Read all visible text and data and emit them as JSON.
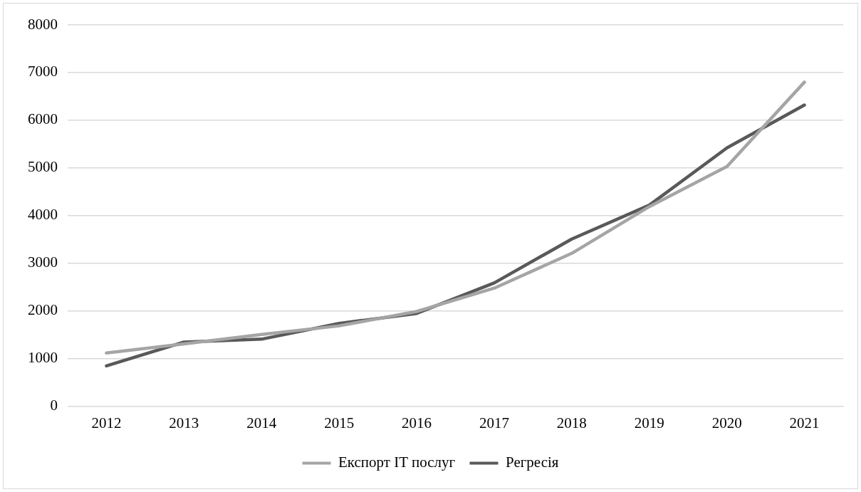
{
  "chart_data": {
    "type": "line",
    "categories": [
      "2012",
      "2013",
      "2014",
      "2015",
      "2016",
      "2017",
      "2018",
      "2019",
      "2020",
      "2021"
    ],
    "series": [
      {
        "name": "Експорт IT послуг",
        "color": "#a5a5a5",
        "values": [
          1120,
          1310,
          1510,
          1690,
          1990,
          2480,
          3210,
          4190,
          5030,
          6800
        ]
      },
      {
        "name": "Регресія",
        "color": "#595959",
        "values": [
          850,
          1350,
          1410,
          1740,
          1950,
          2590,
          3510,
          4220,
          5420,
          6320
        ]
      }
    ],
    "ylim": [
      0,
      8000
    ],
    "yticks": [
      0,
      1000,
      2000,
      3000,
      4000,
      5000,
      6000,
      7000,
      8000
    ],
    "grid": "y",
    "legend": "bottom",
    "marker": "none",
    "line_style": "solid"
  }
}
